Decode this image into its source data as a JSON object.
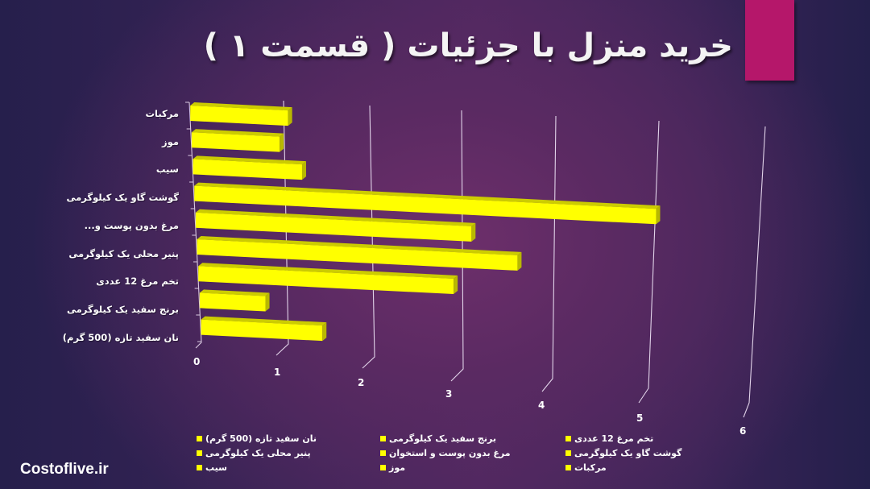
{
  "header": {
    "title": "خرید منزل با جزئیات ( قسمت ۱ )",
    "accent_color": "#b5176a"
  },
  "brand": {
    "text": "Costoflive.ir"
  },
  "chart_data": {
    "type": "bar",
    "orientation": "horizontal",
    "style": "3d",
    "title": "خرید منزل با جزئیات ( قسمت ۱ )",
    "xlabel": "",
    "ylabel": "",
    "xlim": [
      0,
      6
    ],
    "x_ticks": [
      "0",
      "1",
      "2",
      "3",
      "4",
      "5",
      "6"
    ],
    "grid": true,
    "legend_position": "bottom",
    "bar_color": "#ffff00",
    "categories": [
      "مرکبات",
      "موز",
      "سیب",
      "گوشت گاو یک کیلوگرمی",
      "مرغ بدون پوست و...",
      "پنیر محلی یک کیلوگرمی",
      "تخم مرغ 12 عددی",
      "برنج سفید یک کیلوگرمی",
      "نان سفید تازه (500 گرم)"
    ],
    "values": [
      1.05,
      0.95,
      1.2,
      5.0,
      3.1,
      3.6,
      2.9,
      0.75,
      1.4
    ],
    "legend": [
      "نان سفید تازه (500 گرم)",
      "برنج سفید یک کیلوگرمی",
      "تخم مرغ 12 عددی",
      "پنیر محلی یک کیلوگرمی",
      "مرغ بدون پوست و استخوان",
      "گوشت گاو یک کیلوگرمی",
      "سیب",
      "موز",
      "مرکبات"
    ]
  }
}
